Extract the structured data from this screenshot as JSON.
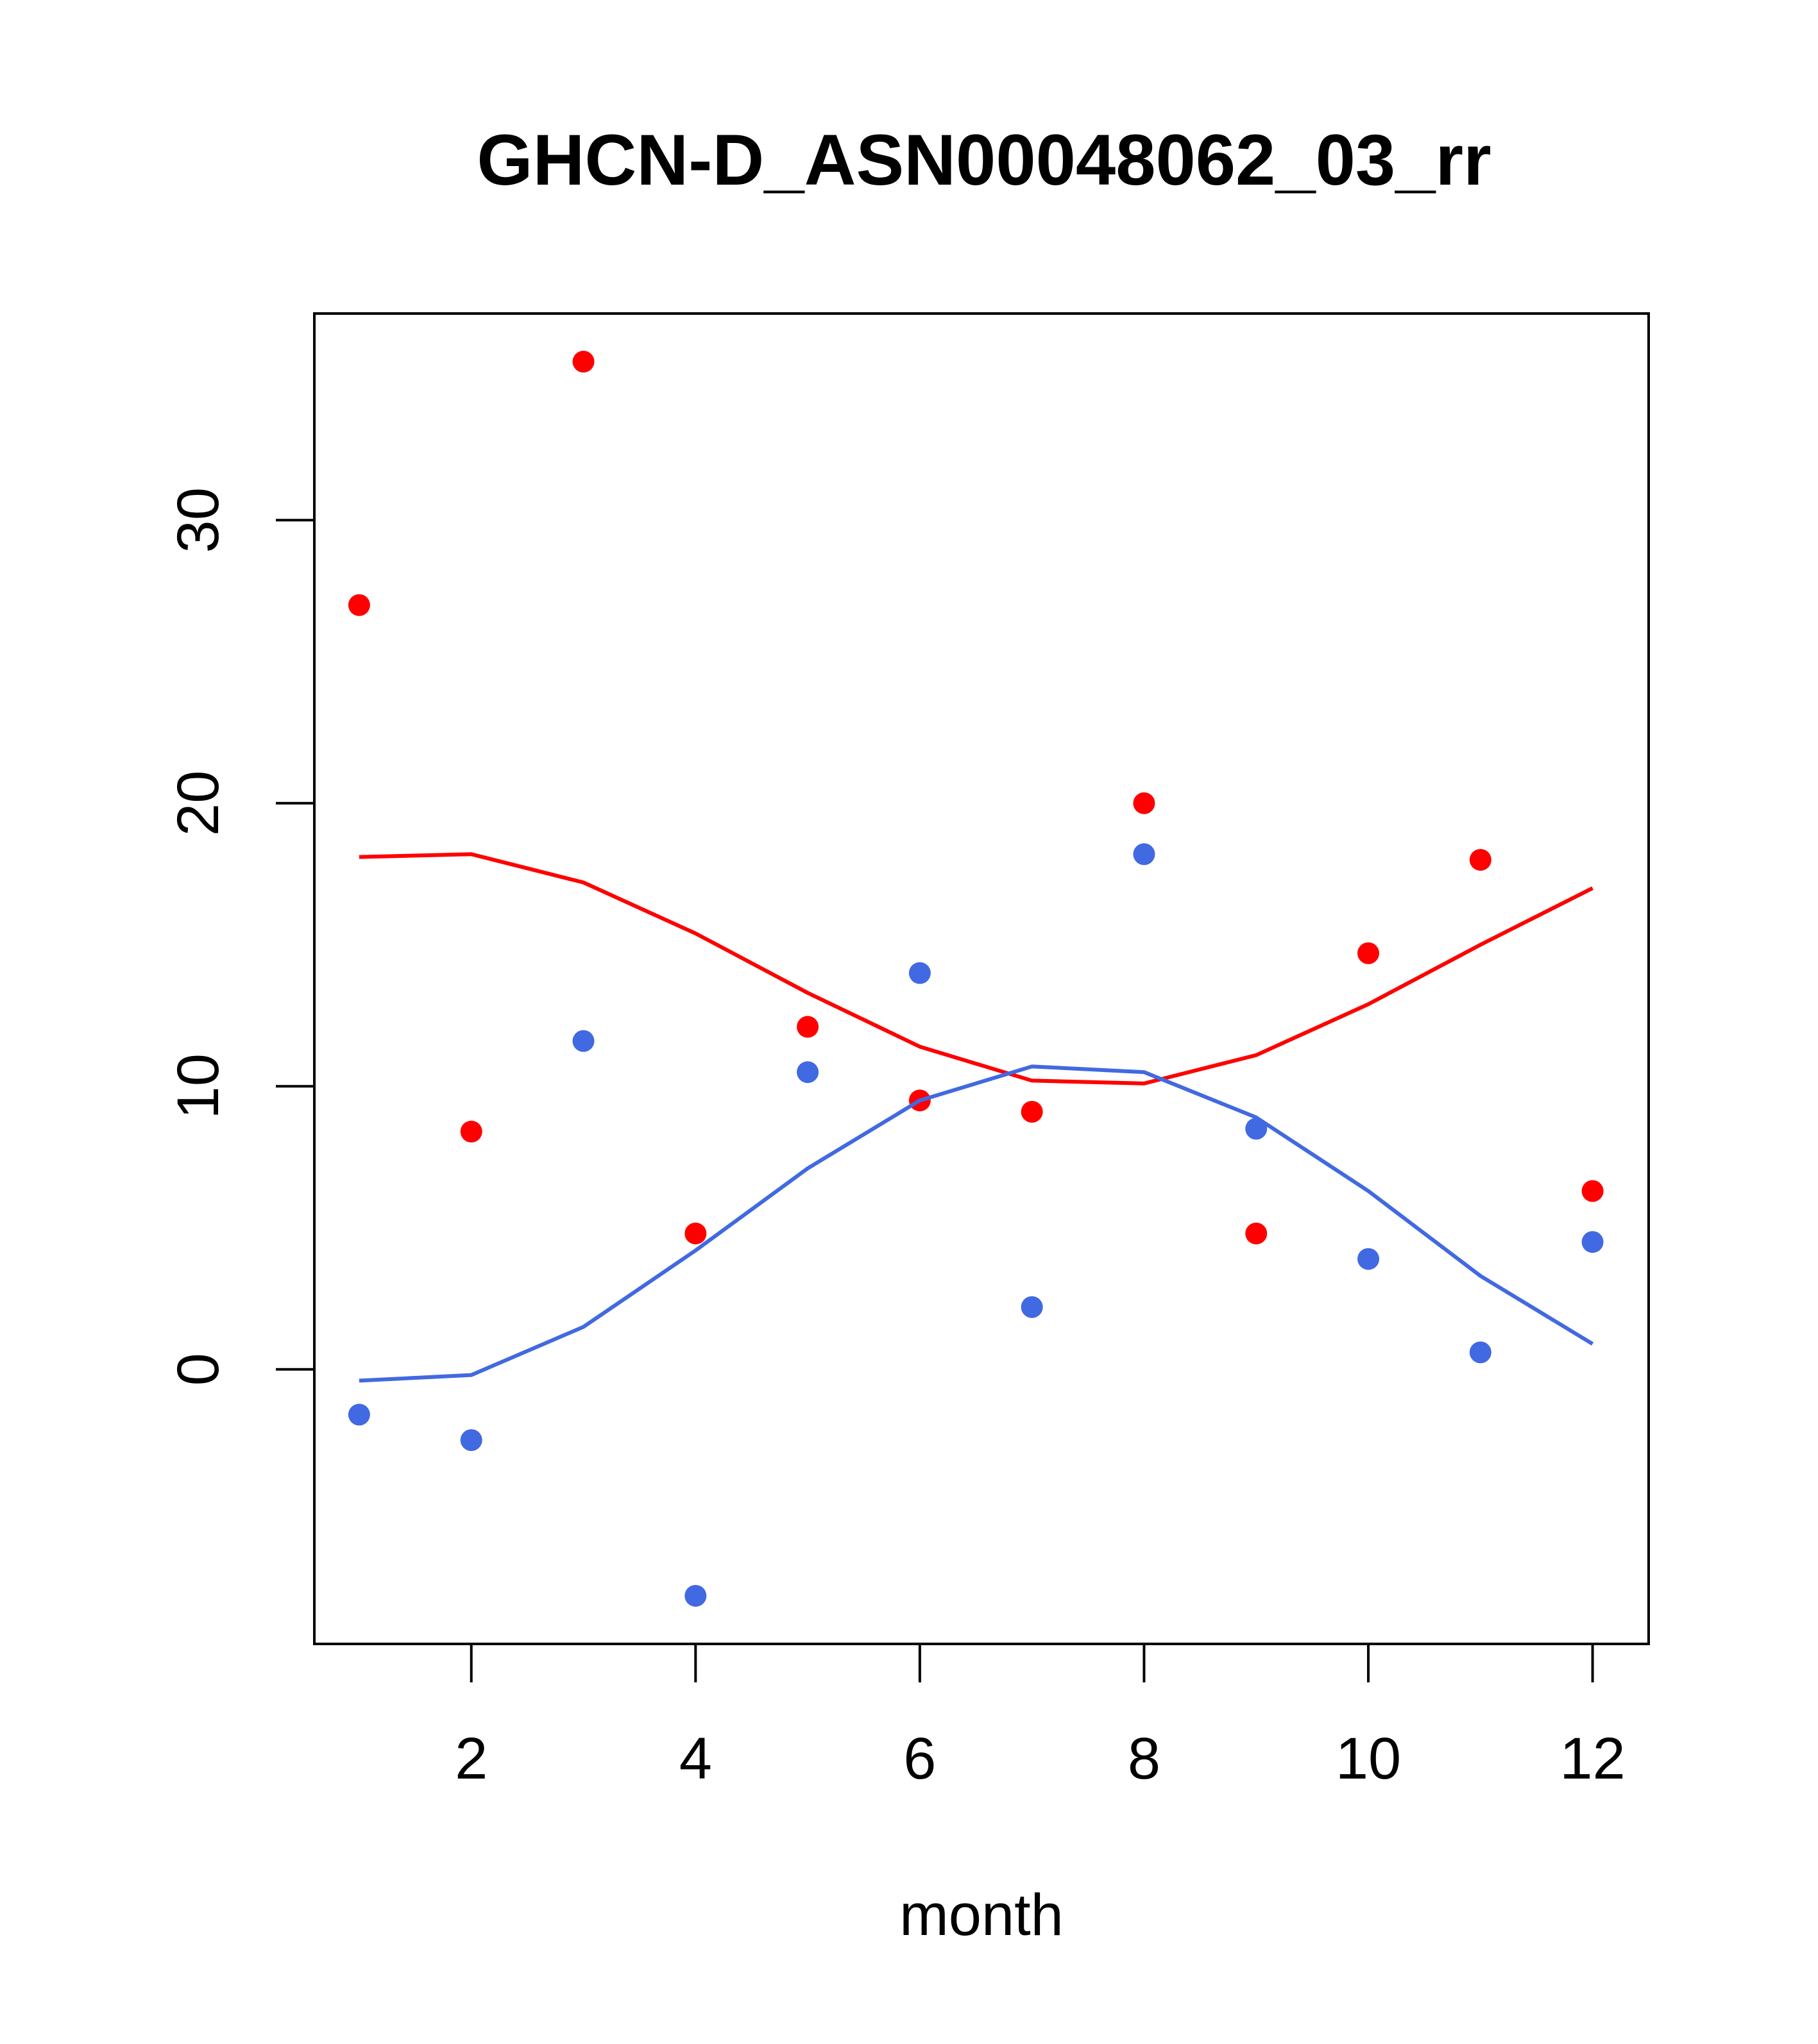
{
  "chart_data": {
    "type": "scatter",
    "title": "GHCN-D_ASN00048062_03_rr",
    "xlabel": "month",
    "ylabel": "",
    "xlim": [
      0.6,
      12.5
    ],
    "ylim": [
      -9.7,
      37.3
    ],
    "x_ticks": [
      2,
      4,
      6,
      8,
      10,
      12
    ],
    "y_ticks": [
      0,
      10,
      20,
      30
    ],
    "grid": false,
    "legend": "none",
    "series": [
      {
        "color": "#ff0000",
        "points_x": [
          1,
          2,
          3,
          4,
          5,
          6,
          7,
          8,
          9,
          10,
          11,
          12
        ],
        "points_y": [
          27.0,
          8.4,
          35.6,
          4.8,
          12.1,
          9.5,
          9.1,
          20.0,
          4.8,
          14.7,
          18.0,
          6.3
        ],
        "line_x": [
          1,
          2,
          3,
          4,
          5,
          6,
          7,
          8,
          9,
          10,
          11,
          12
        ],
        "line_y": [
          18.1,
          18.2,
          17.2,
          15.4,
          13.3,
          11.4,
          10.2,
          10.1,
          11.1,
          12.9,
          15.0,
          17.0
        ]
      },
      {
        "color": "#4169e1",
        "points_x": [
          1,
          2,
          3,
          4,
          5,
          6,
          7,
          8,
          9,
          10,
          11,
          12
        ],
        "points_y": [
          -1.6,
          -2.5,
          11.6,
          -8.0,
          10.5,
          14.0,
          2.2,
          18.2,
          8.5,
          3.9,
          0.6,
          4.5
        ],
        "line_x": [
          1,
          2,
          3,
          4,
          5,
          6,
          7,
          8,
          9,
          10,
          11,
          12
        ],
        "line_y": [
          -0.4,
          -0.2,
          1.5,
          4.2,
          7.1,
          9.5,
          10.7,
          10.5,
          8.9,
          6.3,
          3.3,
          0.9
        ]
      }
    ]
  }
}
